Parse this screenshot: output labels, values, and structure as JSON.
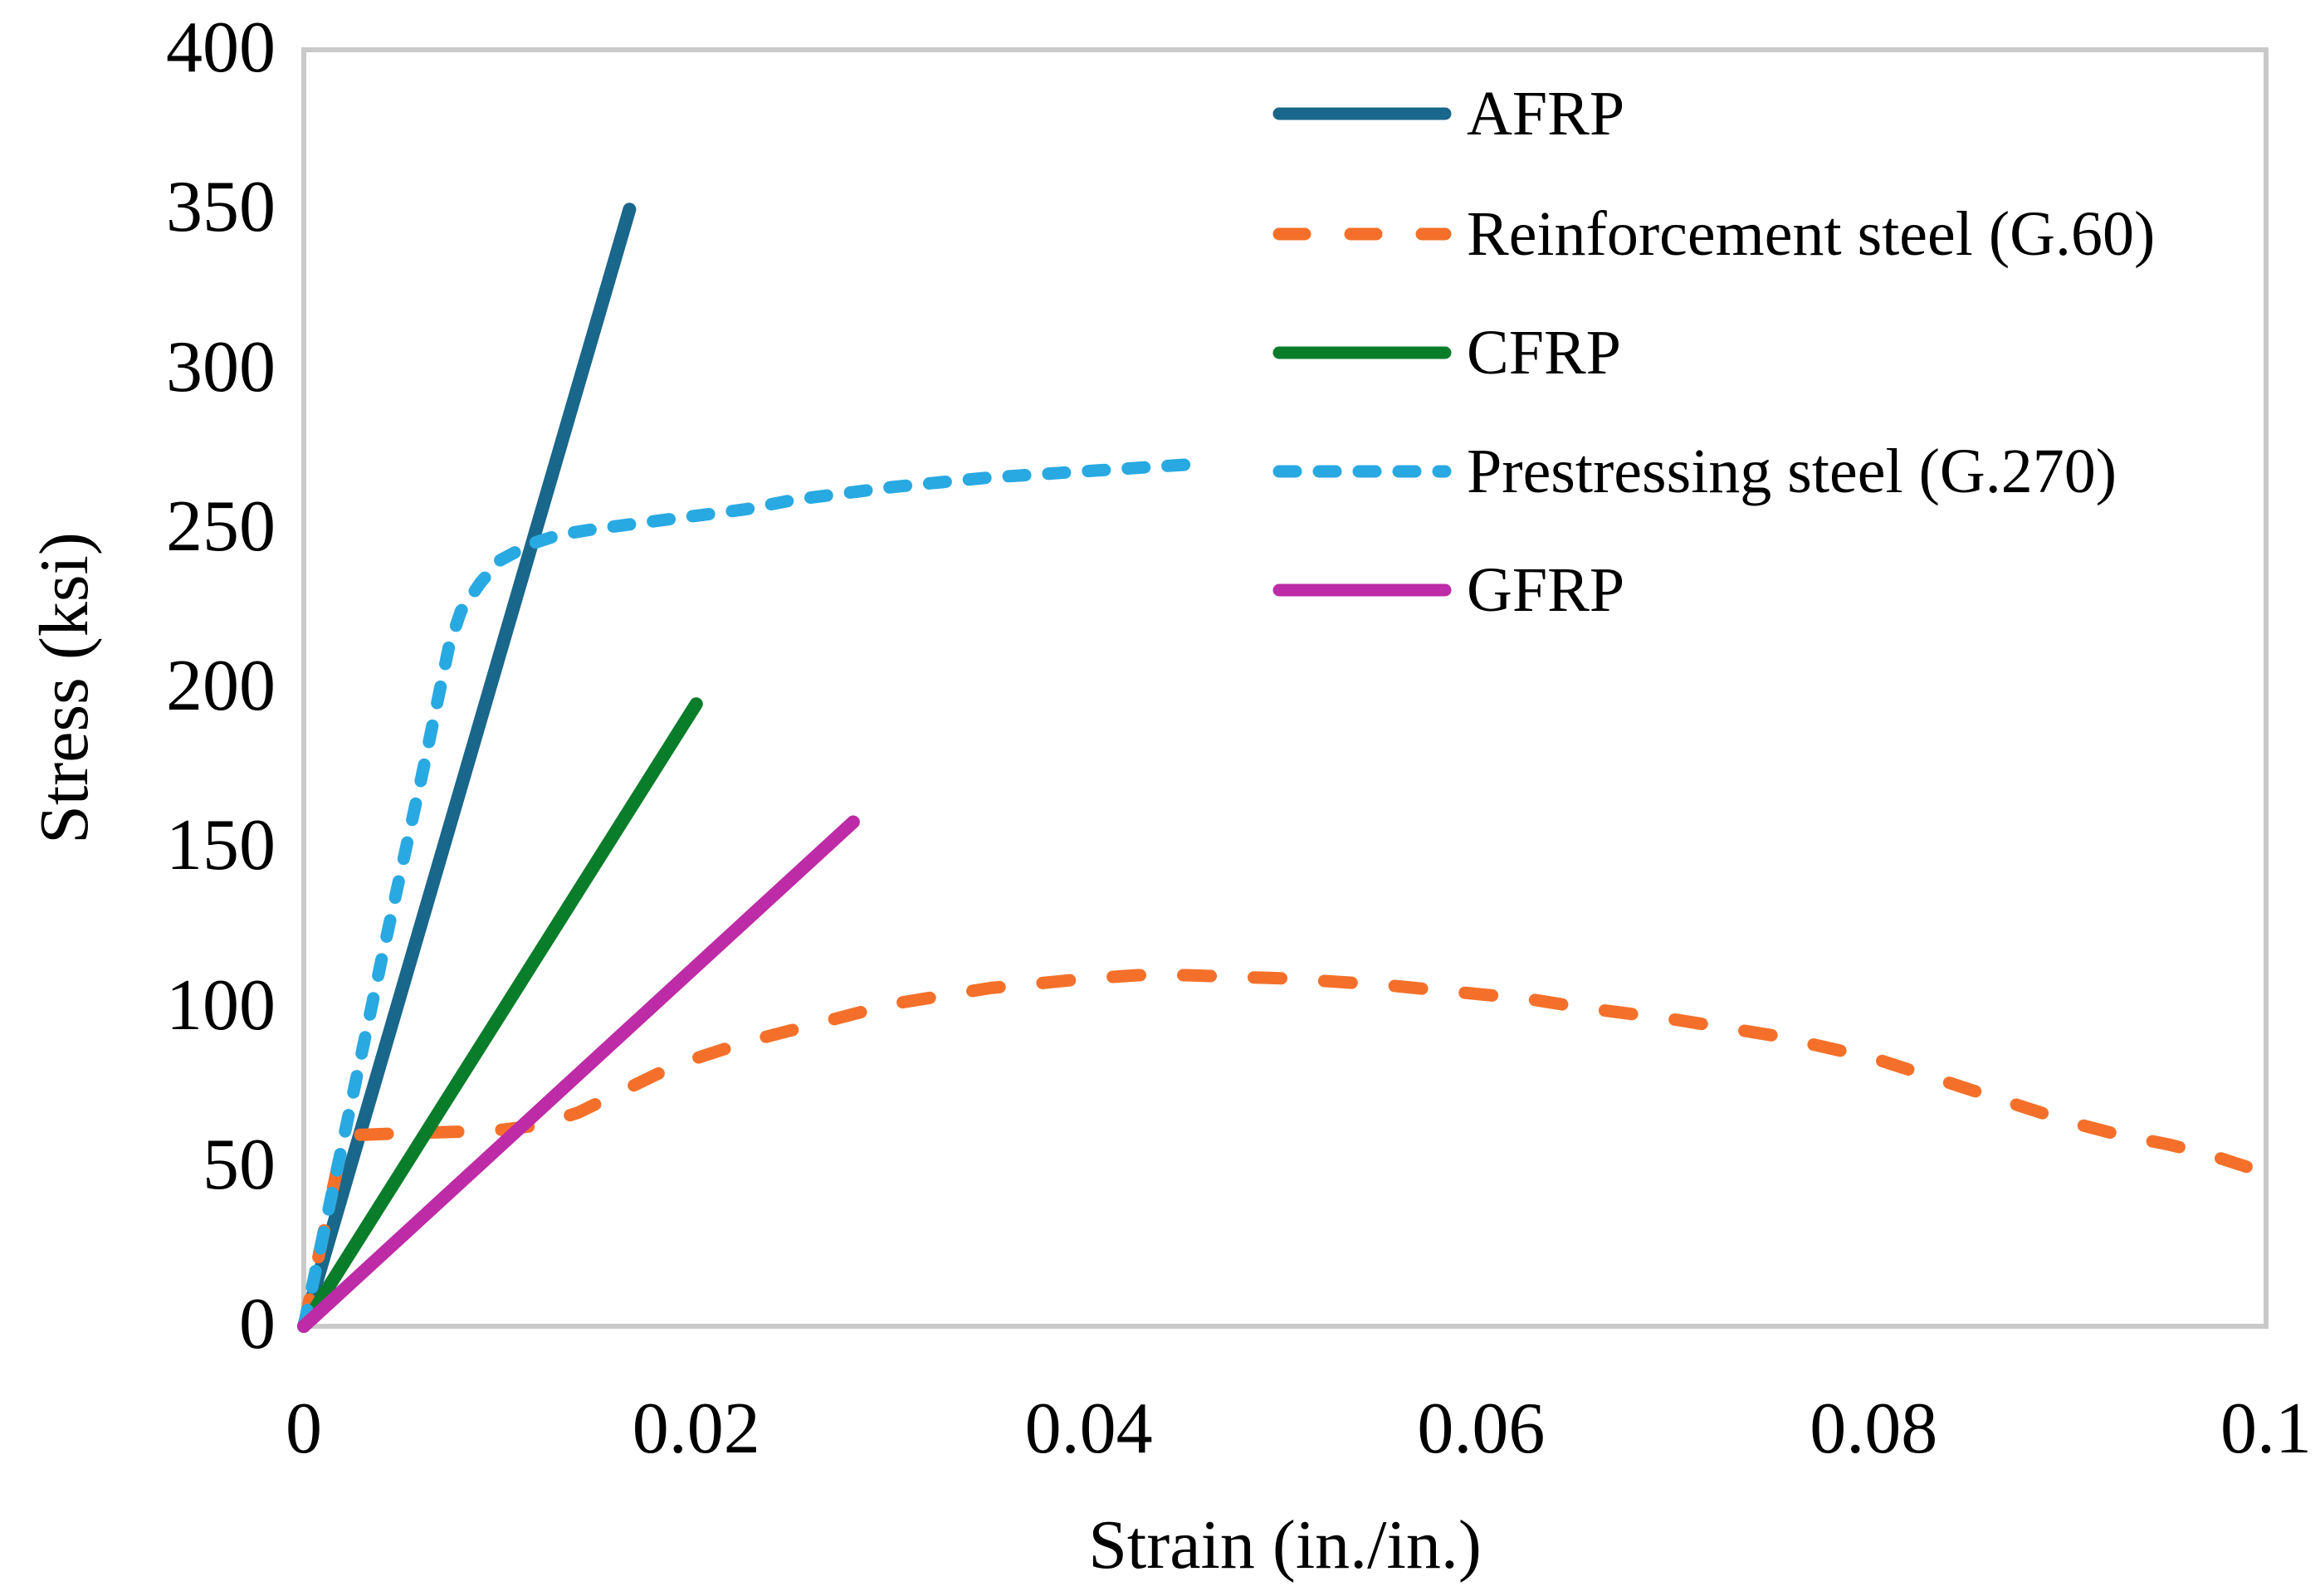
{
  "figure": {
    "background": "#ffffff",
    "frame_color": "#c9c9c9",
    "text_color": "#000000"
  },
  "chart_data": {
    "type": "line",
    "title": "",
    "xlabel": "Strain (in./in.)",
    "ylabel": "Stress (ksi)",
    "xlim": [
      0,
      0.1
    ],
    "ylim": [
      0,
      400
    ],
    "grid": false,
    "legend_position": "upper-right-inside",
    "x_ticks": [
      {
        "value": 0,
        "label": "0"
      },
      {
        "value": 0.02,
        "label": "0.02"
      },
      {
        "value": 0.04,
        "label": "0.04"
      },
      {
        "value": 0.06,
        "label": "0.06"
      },
      {
        "value": 0.08,
        "label": "0.08"
      },
      {
        "value": 0.1,
        "label": "0.1"
      }
    ],
    "y_ticks": [
      {
        "value": 0,
        "label": "0"
      },
      {
        "value": 50,
        "label": "50"
      },
      {
        "value": 100,
        "label": "100"
      },
      {
        "value": 150,
        "label": "150"
      },
      {
        "value": 200,
        "label": "200"
      },
      {
        "value": 250,
        "label": "250"
      },
      {
        "value": 300,
        "label": "300"
      },
      {
        "value": 350,
        "label": "350"
      },
      {
        "value": 400,
        "label": "400"
      }
    ],
    "series": [
      {
        "name": "AFRP",
        "color": "#19678a",
        "style": "solid",
        "points": [
          [
            0,
            0
          ],
          [
            0.0166,
            350
          ]
        ]
      },
      {
        "name": "Reinforcement steel (G.60)",
        "color": "#f4702a",
        "style": "dashed",
        "points": [
          [
            0,
            0
          ],
          [
            0.001,
            29
          ],
          [
            0.00207,
            60
          ],
          [
            0.003,
            60
          ],
          [
            0.005,
            60.5
          ],
          [
            0.008,
            61
          ],
          [
            0.01,
            61.5
          ],
          [
            0.012,
            63
          ],
          [
            0.014,
            67
          ],
          [
            0.016,
            73
          ],
          [
            0.018,
            79
          ],
          [
            0.02,
            84
          ],
          [
            0.0225,
            89
          ],
          [
            0.025,
            93
          ],
          [
            0.0275,
            97
          ],
          [
            0.03,
            101
          ],
          [
            0.0325,
            103.5
          ],
          [
            0.035,
            106
          ],
          [
            0.0375,
            107.5
          ],
          [
            0.04,
            109
          ],
          [
            0.0425,
            110
          ],
          [
            0.045,
            110
          ],
          [
            0.0475,
            109.5
          ],
          [
            0.05,
            109
          ],
          [
            0.0525,
            108
          ],
          [
            0.055,
            107
          ],
          [
            0.0575,
            105.5
          ],
          [
            0.06,
            104
          ],
          [
            0.0625,
            102.5
          ],
          [
            0.065,
            100
          ],
          [
            0.0675,
            98
          ],
          [
            0.07,
            96
          ],
          [
            0.0725,
            93.5
          ],
          [
            0.075,
            91
          ],
          [
            0.0775,
            87.5
          ],
          [
            0.08,
            84
          ],
          [
            0.0825,
            79
          ],
          [
            0.085,
            74
          ],
          [
            0.0875,
            69
          ],
          [
            0.09,
            64
          ],
          [
            0.0925,
            60
          ],
          [
            0.095,
            57
          ],
          [
            0.097,
            54
          ],
          [
            0.099,
            50
          ]
        ]
      },
      {
        "name": "CFRP",
        "color": "#0a7d2a",
        "style": "solid",
        "points": [
          [
            0,
            0
          ],
          [
            0.02,
            195
          ]
        ]
      },
      {
        "name": "Prestressing steel (G.270)",
        "color": "#29a9e1",
        "style": "short-dashed",
        "points": [
          [
            0,
            0
          ],
          [
            0.002,
            58
          ],
          [
            0.004,
            116
          ],
          [
            0.006,
            172
          ],
          [
            0.0074,
            213
          ],
          [
            0.008,
            224
          ],
          [
            0.009,
            233
          ],
          [
            0.01,
            240
          ],
          [
            0.0115,
            245
          ],
          [
            0.013,
            248
          ],
          [
            0.015,
            250
          ],
          [
            0.0175,
            252
          ],
          [
            0.02,
            254
          ],
          [
            0.0225,
            256
          ],
          [
            0.025,
            259
          ],
          [
            0.0275,
            261
          ],
          [
            0.03,
            263
          ],
          [
            0.0325,
            264.5
          ],
          [
            0.035,
            266
          ],
          [
            0.0375,
            267
          ],
          [
            0.04,
            268
          ],
          [
            0.0425,
            269
          ],
          [
            0.045,
            270
          ]
        ]
      },
      {
        "name": "GFRP",
        "color": "#bd2ba6",
        "style": "solid",
        "points": [
          [
            0,
            0
          ],
          [
            0.028,
            158
          ]
        ]
      }
    ]
  }
}
